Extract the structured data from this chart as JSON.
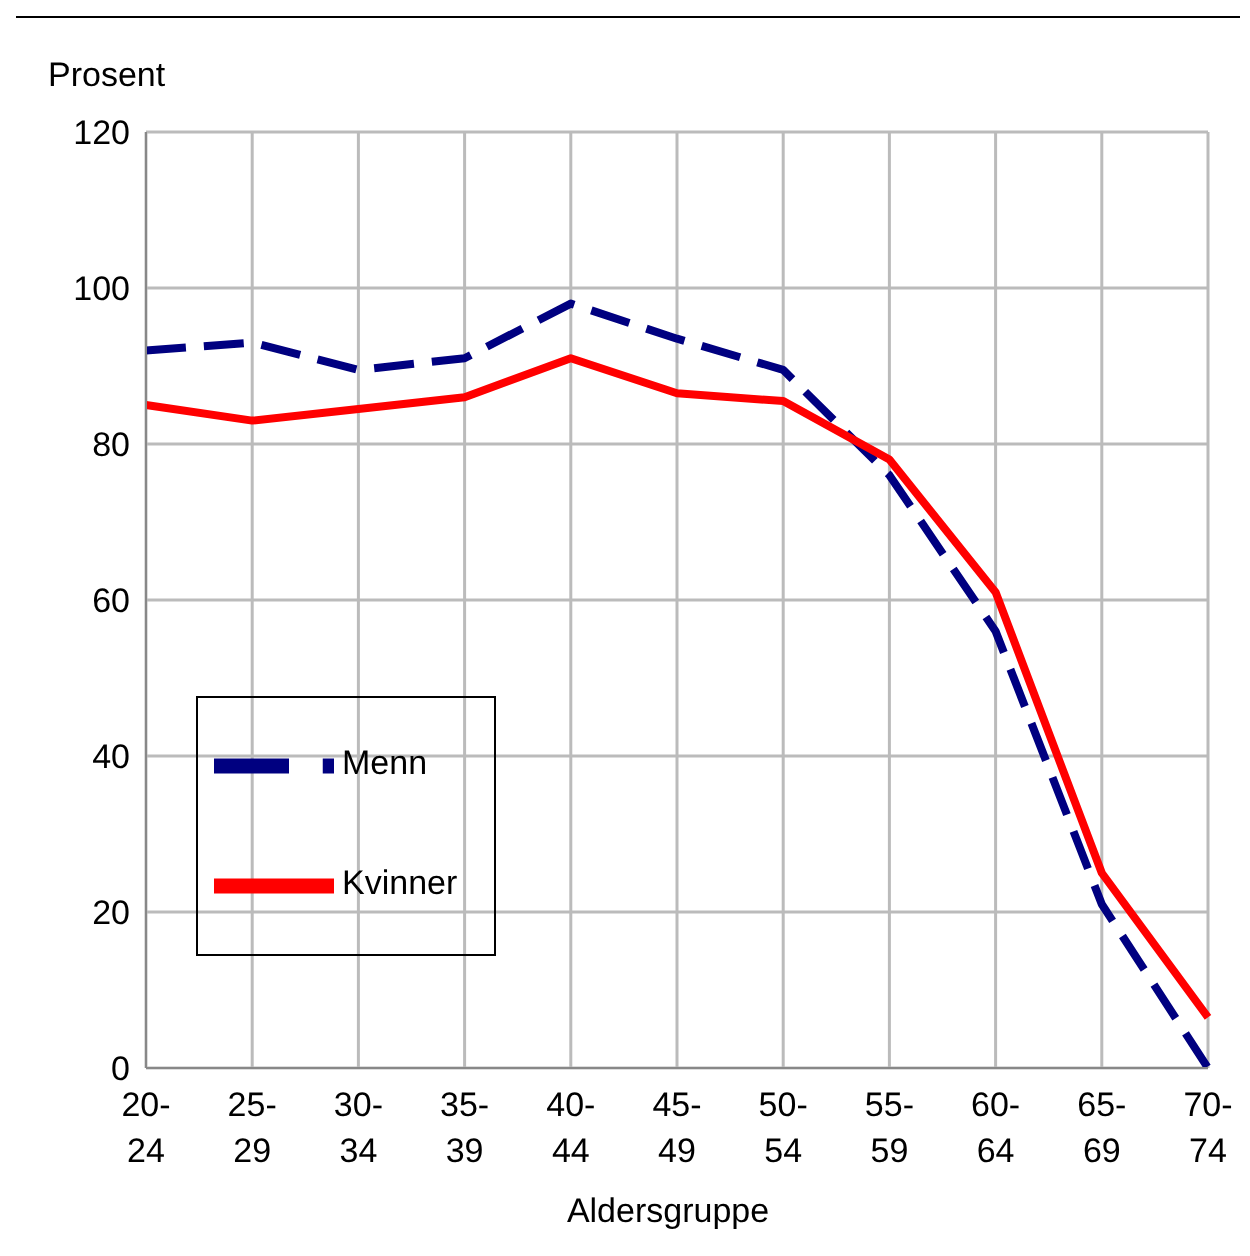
{
  "chart_data": {
    "type": "line",
    "ylabel": "Prosent",
    "xlabel": "Aldersgruppe",
    "categories": [
      "20-24",
      "25-29",
      "30-34",
      "35-39",
      "40-44",
      "45-49",
      "50-54",
      "55-59",
      "60-64",
      "65-69",
      "70-74"
    ],
    "series": [
      {
        "name": "Menn",
        "color": "#000080",
        "line_style": "dashed",
        "values": [
          92,
          93,
          89.5,
          91,
          98,
          93.5,
          89.5,
          76,
          56,
          21,
          0
        ]
      },
      {
        "name": "Kvinner",
        "color": "#ff0000",
        "line_style": "solid",
        "values": [
          85,
          83,
          84.5,
          86,
          91,
          86.5,
          85.5,
          78,
          61,
          25,
          6.5
        ]
      }
    ],
    "ylim": [
      0,
      120
    ],
    "yticks": [
      0,
      20,
      40,
      60,
      80,
      100,
      120
    ],
    "grid": true,
    "legend": "bottom left",
    "marker": "none"
  }
}
